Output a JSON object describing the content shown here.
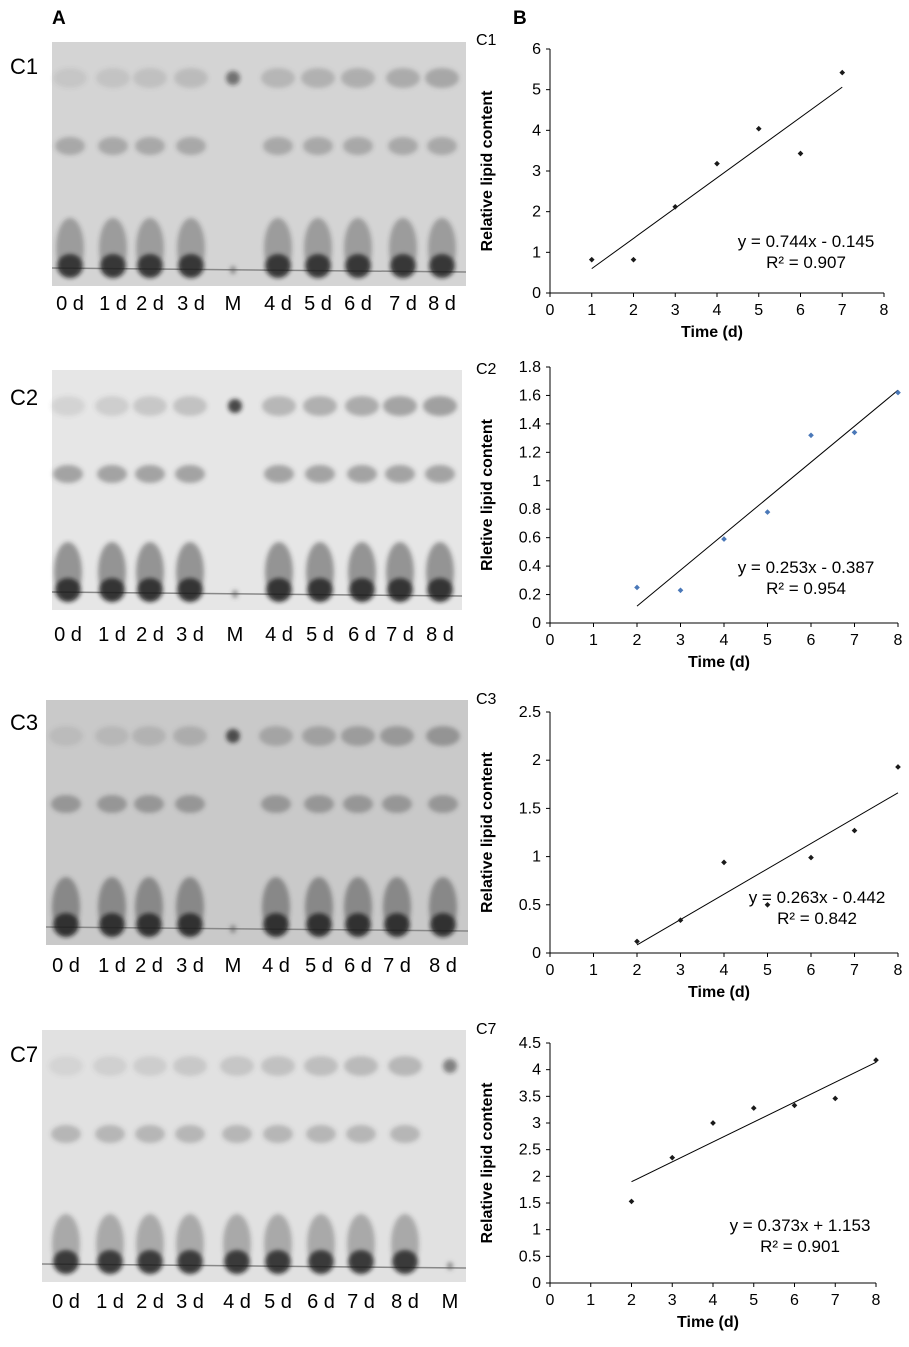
{
  "panel_a_label": "A",
  "panel_b_label": "B",
  "colors": {
    "line": "#000000",
    "point_dark": "#1a1a1a",
    "point_blue": "#4a78b8",
    "plate_bg": "#cfcfcf"
  },
  "gels": [
    {
      "label": "C1",
      "lanes": [
        "0 d",
        "1 d",
        "2 d",
        "3 d",
        "M",
        "4 d",
        "5 d",
        "6 d",
        "7 d",
        "8 d"
      ]
    },
    {
      "label": "C2",
      "lanes": [
        "0 d",
        "1 d",
        "2 d",
        "3 d",
        "M",
        "4 d",
        "5 d",
        "6 d",
        "7 d",
        "8 d"
      ]
    },
    {
      "label": "C3",
      "lanes": [
        "0 d",
        "1 d",
        "2 d",
        "3 d",
        "M",
        "4 d",
        "5 d",
        "6 d",
        "7 d",
        "8 d"
      ]
    },
    {
      "label": "C7",
      "lanes": [
        "0 d",
        "1 d",
        "2 d",
        "3 d",
        "4 d",
        "5 d",
        "6 d",
        "7 d",
        "8 d",
        "M"
      ]
    }
  ],
  "chart_data": [
    {
      "type": "scatter",
      "label": "C1",
      "xlabel": "Time (d)",
      "ylabel": "Relative lipid content",
      "xlim": [
        0,
        8
      ],
      "ylim": [
        0,
        6
      ],
      "xticks": [
        "0",
        "1",
        "2",
        "3",
        "4",
        "5",
        "6",
        "7",
        "8"
      ],
      "yticks": [
        "0",
        "1",
        "2",
        "3",
        "4",
        "5",
        "6"
      ],
      "points": [
        [
          1,
          0.82
        ],
        [
          2,
          0.82
        ],
        [
          3,
          2.12
        ],
        [
          4,
          3.18
        ],
        [
          5,
          4.04
        ],
        [
          6,
          3.43
        ],
        [
          7,
          5.42
        ]
      ],
      "point_color": "#1a1a1a",
      "trendline": {
        "slope": 0.744,
        "intercept": -0.145,
        "x_range": [
          1,
          7
        ]
      },
      "equation": "y = 0.744x - 0.145",
      "r2": "R² = 0.907"
    },
    {
      "type": "scatter",
      "label": "C2",
      "xlabel": "Time (d)",
      "ylabel": "Rletive lipid content",
      "xlim": [
        0,
        8
      ],
      "ylim": [
        0,
        1.8
      ],
      "xticks": [
        "0",
        "1",
        "2",
        "3",
        "4",
        "5",
        "6",
        "7",
        "8"
      ],
      "yticks": [
        "0",
        "0.2",
        "0.4",
        "0.6",
        "0.8",
        "1",
        "1.2",
        "1.4",
        "1.6",
        "1.8"
      ],
      "points": [
        [
          2,
          0.25
        ],
        [
          3,
          0.23
        ],
        [
          4,
          0.59
        ],
        [
          5,
          0.78
        ],
        [
          6,
          1.32
        ],
        [
          7,
          1.34
        ],
        [
          8,
          1.62
        ]
      ],
      "point_color": "#4a78b8",
      "trendline": {
        "slope": 0.253,
        "intercept": -0.387,
        "x_range": [
          2,
          8
        ]
      },
      "equation": "y = 0.253x - 0.387",
      "r2": "R² = 0.954"
    },
    {
      "type": "scatter",
      "label": "C3",
      "xlabel": "Time (d)",
      "ylabel": "Relative lipid content",
      "xlim": [
        0,
        8
      ],
      "ylim": [
        0,
        2.5
      ],
      "xticks": [
        "0",
        "1",
        "2",
        "3",
        "4",
        "5",
        "6",
        "7",
        "8"
      ],
      "yticks": [
        "0",
        "0.5",
        "1",
        "1.5",
        "2",
        "2.5"
      ],
      "points": [
        [
          2,
          0.12
        ],
        [
          3,
          0.34
        ],
        [
          4,
          0.94
        ],
        [
          5,
          0.5
        ],
        [
          6,
          0.99
        ],
        [
          7,
          1.27
        ],
        [
          8,
          1.93
        ]
      ],
      "point_color": "#1a1a1a",
      "trendline": {
        "slope": 0.263,
        "intercept": -0.442,
        "x_range": [
          2,
          8
        ]
      },
      "equation": "y = 0.263x - 0.442",
      "r2": "R² = 0.842"
    },
    {
      "type": "scatter",
      "label": "C7",
      "xlabel": "Time (d)",
      "ylabel": "Relative lipid content",
      "xlim": [
        0,
        8
      ],
      "ylim": [
        0,
        4.5
      ],
      "xticks": [
        "0",
        "1",
        "2",
        "3",
        "4",
        "5",
        "6",
        "7",
        "8"
      ],
      "yticks": [
        "0",
        "0.5",
        "1",
        "1.5",
        "2",
        "2.5",
        "3",
        "3.5",
        "4",
        "4.5"
      ],
      "points": [
        [
          2,
          1.53
        ],
        [
          3,
          2.35
        ],
        [
          4,
          3.0
        ],
        [
          5,
          3.28
        ],
        [
          6,
          3.33
        ],
        [
          7,
          3.46
        ],
        [
          8,
          4.18
        ]
      ],
      "point_color": "#1a1a1a",
      "trendline": {
        "slope": 0.373,
        "intercept": 1.153,
        "x_range": [
          2,
          8
        ]
      },
      "equation": "y = 0.373x + 1.153",
      "r2": "R² = 0.901"
    }
  ]
}
